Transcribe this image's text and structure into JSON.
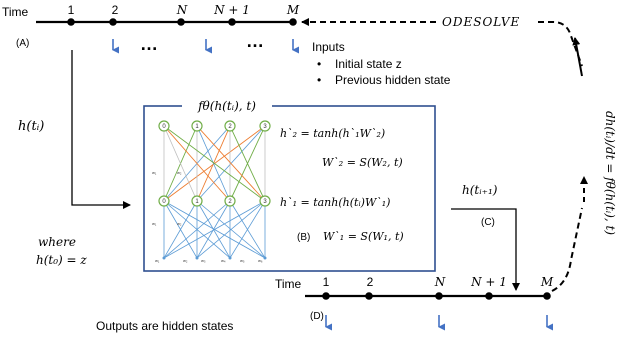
{
  "timeline_top": {
    "axis_label": "Time",
    "tag": "(A)",
    "ticks": [
      "1",
      "2",
      "N",
      "N + 1",
      "M"
    ],
    "ellipsis": [
      "…",
      "…"
    ]
  },
  "solver_label": "ODESOLVE",
  "inputs": {
    "title": "Inputs",
    "items": [
      "Initial state z",
      "Previous hidden state"
    ]
  },
  "h_ti_label": "h(tᵢ)",
  "where_label": {
    "line1": "where",
    "line2": "h(t₀) = z"
  },
  "network_box": {
    "title": "fθ(h(tᵢ), t)",
    "tag": "(B)",
    "eq_h2": "h`₂ = tanh(h`₁W`₂)",
    "eq_w2": "W`₂ = S(W₂, t)",
    "eq_h1": "h`₁ = tanh(h(tᵢ)W`₁)",
    "eq_w1": "W`₁ = S(W₁, t)",
    "node_labels": [
      "0",
      "1",
      "2",
      "3"
    ],
    "weight_labels_top": [
      "w₁",
      "w₂"
    ],
    "weight_labels_mid": [
      "w₁",
      "w₂"
    ],
    "weight_labels_bot": [
      "w₁",
      "w₂",
      "w₃",
      "w₄",
      "w₅",
      "w₆"
    ]
  },
  "h_ti1_label": "h(tᵢ₊₁)",
  "tag_c": "(C)",
  "derivative_label": "dh(tᵢ)/dt = fθ(h(tᵢ), t)",
  "timeline_bottom": {
    "axis_label": "Time",
    "tag": "(D)",
    "ticks": [
      "1",
      "2",
      "N",
      "N + 1",
      "M"
    ]
  },
  "outputs_label": "Outputs are hidden states",
  "colors": {
    "arrow_blue": "#4472c4",
    "box_border": "#2f4f8f",
    "node_green": "#70ad47",
    "edge_orange": "#ed7d31",
    "edge_blue": "#5b9bd5",
    "edge_grey": "#bfbfbf"
  }
}
